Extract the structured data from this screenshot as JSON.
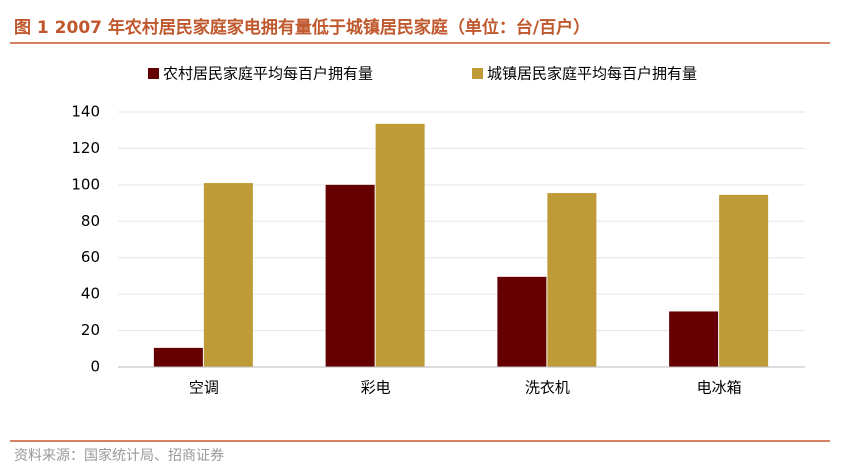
{
  "chart_data": {
    "type": "bar",
    "title": "图 1 2007 年农村居民家庭家电拥有量低于城镇居民家庭（单位：台/百户）",
    "source": "资料来源：国家统计局、招商证券",
    "categories": [
      "空调",
      "彩电",
      "洗衣机",
      "电冰箱"
    ],
    "series": [
      {
        "name": "农村居民家庭平均每百户拥有量",
        "color": "#650000",
        "values": [
          10.5,
          100,
          49.5,
          30.5
        ]
      },
      {
        "name": "城镇居民家庭平均每百户拥有量",
        "color": "#bf9b38",
        "values": [
          101,
          133.5,
          95.5,
          94.5
        ]
      }
    ],
    "ylim": [
      0,
      140
    ],
    "yticks": [
      0,
      20,
      40,
      60,
      80,
      100,
      120,
      140
    ],
    "grid": true,
    "legend": "top"
  }
}
